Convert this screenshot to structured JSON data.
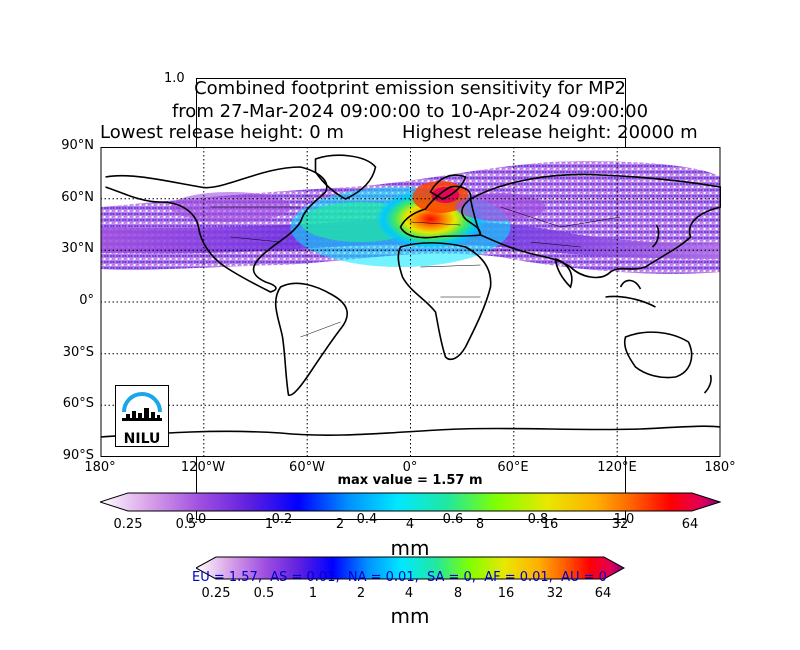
{
  "title": {
    "line1": "Combined footprint emission sensitivity for MP2",
    "line2": "from 27-Mar-2024 09:00:00 to 10-Apr-2024 09:00:00",
    "line3_left": "Lowest release height: 0 m",
    "line3_right": "Highest release height: 20000 m"
  },
  "ghost_axis": {
    "top_label": "1.0",
    "ticks": [
      "0.0",
      "0.2",
      "0.4",
      "0.6",
      "0.8",
      "1.0"
    ]
  },
  "map": {
    "lat_labels": [
      "90°N",
      "60°N",
      "30°N",
      "0°",
      "30°S",
      "60°S",
      "90°S"
    ],
    "lon_labels": [
      "180°",
      "120°W",
      "60°W",
      "0°",
      "60°E",
      "120°E",
      "180°"
    ],
    "max_value": "max value = 1.57 m",
    "logo_text": "NILU"
  },
  "colorbar_main": {
    "ticks": [
      "0.25",
      "0.5",
      "1",
      "2",
      "4",
      "8",
      "16",
      "32",
      "64"
    ],
    "unit": "mm",
    "colors": [
      "#ffffff",
      "#d8a0e8",
      "#a050e0",
      "#6020e0",
      "#0000ff",
      "#0090ff",
      "#00e8ff",
      "#20e8a0",
      "#80ff00",
      "#e8e800",
      "#ffb000",
      "#ff6000",
      "#ff0000",
      "#e0005a",
      "#800080"
    ]
  },
  "colorbar_ghost": {
    "ticks": [
      "0.25",
      "0.5",
      "1",
      "2",
      "4",
      "8",
      "16",
      "32",
      "64"
    ],
    "unit": "mm"
  },
  "stats": "EU = 1.57,  AS = 0.01,  NA = 0.01,  SA = 0,  AF = 0.01,  AU = 0"
}
